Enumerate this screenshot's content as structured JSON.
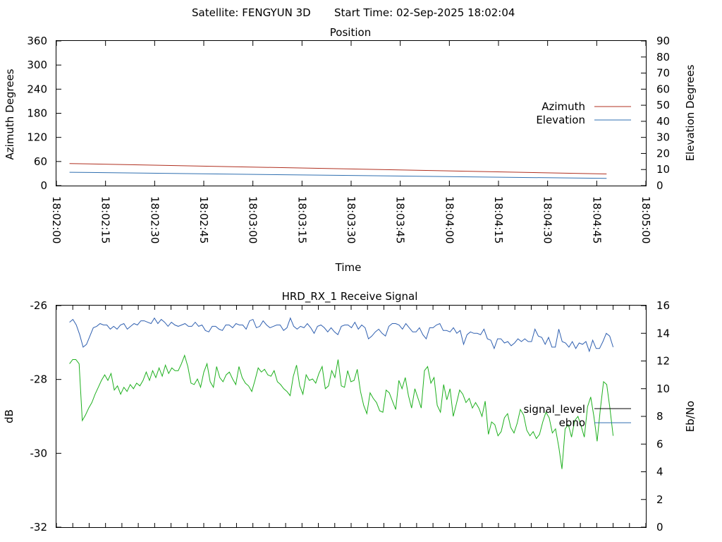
{
  "header": {
    "satellite_text": "Satellite: FENGYUN 3D",
    "start_time_text": "Start Time: 02-Sep-2025 18:02:04"
  },
  "colors": {
    "azimuth": "#b03020",
    "elevation": "#2f6fb0",
    "signal_level": "#000000",
    "ebno_legend": "#2f6fb0",
    "signal_trace": "#1fb01f",
    "ebno_trace": "#3060b0"
  },
  "chart_data": [
    {
      "type": "line",
      "title": "Position",
      "xlabel": "Time",
      "ylabel_left": "Azimuth Degrees",
      "ylabel_right": "Elevation Degrees",
      "xlim_seconds_from": "18:02:00",
      "x_tick_labels": [
        "18:02:00",
        "18:02:15",
        "18:02:30",
        "18:02:45",
        "18:03:00",
        "18:03:15",
        "18:03:30",
        "18:03:45",
        "18:04:00",
        "18:04:15",
        "18:04:30",
        "18:04:45",
        "18:05:00"
      ],
      "ylim_left": [
        0,
        360
      ],
      "ylim_right": [
        0,
        90
      ],
      "left_tick_labels": [
        "0",
        "60",
        "120",
        "180",
        "240",
        "300",
        "360"
      ],
      "right_tick_labels": [
        "0",
        "10",
        "20",
        "30",
        "40",
        "50",
        "60",
        "70",
        "80",
        "90"
      ],
      "legend_position": "right",
      "series": [
        {
          "name": "Azimuth",
          "axis": "left",
          "x": [
            "18:02:04",
            "18:04:48"
          ],
          "values": [
            55,
            29
          ]
        },
        {
          "name": "Elevation",
          "axis": "right",
          "x": [
            "18:02:04",
            "18:04:48"
          ],
          "values": [
            8.3,
            4.5
          ]
        }
      ]
    },
    {
      "type": "line",
      "title": "HRD_RX_1 Receive Signal",
      "ylabel_left": "dB",
      "ylabel_right": "Eb/No",
      "ylim_left": [
        -32,
        -26
      ],
      "ylim_right": [
        0,
        16
      ],
      "left_tick_labels": [
        "-32",
        "-30",
        "-28",
        "-26"
      ],
      "right_tick_labels": [
        "0",
        "2",
        "4",
        "6",
        "8",
        "10",
        "12",
        "14",
        "16"
      ],
      "legend_position": "right",
      "legend": [
        {
          "name": "signal_level"
        },
        {
          "name": "ebno"
        }
      ],
      "series": [
        {
          "axis": "right",
          "values": [
            14.8,
            15.0,
            14.6,
            13.9,
            13.0,
            13.2,
            13.8,
            14.4,
            14.5,
            14.7,
            14.6,
            14.6,
            14.3,
            14.5,
            14.3,
            14.6,
            14.7,
            14.3,
            14.5,
            14.7,
            14.6,
            14.9,
            14.9,
            14.8,
            14.7,
            15.1,
            14.7,
            15.0,
            14.8,
            14.5,
            14.8,
            14.6,
            14.5,
            14.6,
            14.7,
            14.5,
            14.5,
            14.8,
            14.5,
            14.6,
            14.2,
            14.1,
            14.5,
            14.5,
            14.3,
            14.2,
            14.6,
            14.6,
            14.4,
            14.7,
            14.6,
            14.6,
            14.3,
            14.9,
            15.0,
            14.4,
            14.5,
            14.9,
            14.6,
            14.4,
            14.5,
            14.6,
            14.6,
            14.2,
            14.4,
            15.1,
            14.5,
            14.3,
            14.5,
            14.4,
            14.7,
            14.4,
            14.0,
            14.5,
            14.6,
            14.4,
            14.1,
            14.4,
            14.1,
            13.9,
            14.5,
            14.6,
            14.6,
            14.4,
            14.8,
            14.3,
            14.6,
            14.4,
            13.6,
            13.8,
            14.1,
            14.3,
            14.0,
            13.8,
            14.5,
            14.7,
            14.7,
            14.6,
            14.3,
            14.7,
            14.4,
            14.1,
            14.1,
            14.4,
            13.9,
            13.6,
            14.4,
            14.4,
            14.6,
            14.7,
            14.2,
            14.2,
            14.1,
            14.4,
            14.0,
            14.2,
            13.2,
            13.9,
            14.1,
            14.0,
            14.0,
            13.9,
            14.3,
            13.6,
            13.5,
            12.9,
            13.6,
            13.6,
            13.3,
            13.4,
            13.1,
            13.3,
            13.6,
            13.4,
            13.6,
            13.4,
            13.4,
            14.3,
            13.8,
            13.7,
            13.2,
            13.7,
            13.0,
            13.0,
            14.3,
            13.4,
            13.3,
            13.0,
            13.4,
            12.9,
            13.3,
            13.2,
            13.4,
            12.7,
            13.5,
            12.9,
            12.9,
            13.4,
            14.0,
            13.8,
            13.0
          ],
          "values_count_note": ""
        },
        {
          "axis": "right",
          "values": [
            11.8,
            12.1,
            12.1,
            11.8,
            7.7,
            8.1,
            8.6,
            9.0,
            9.6,
            10.1,
            10.6,
            11.0,
            10.6,
            11.1,
            9.9,
            10.2,
            9.6,
            10.1,
            9.8,
            10.3,
            10.0,
            10.4,
            10.2,
            10.6,
            11.2,
            10.6,
            11.3,
            10.8,
            11.5,
            10.9,
            11.7,
            11.1,
            11.5,
            11.3,
            11.3,
            11.8,
            12.4,
            11.6,
            10.4,
            10.3,
            10.7,
            10.1,
            11.2,
            11.8,
            10.5,
            10.1,
            11.6,
            10.8,
            10.5,
            11.0,
            11.2,
            10.7,
            10.3,
            11.6,
            10.8,
            10.4,
            10.2,
            9.8,
            10.6,
            11.5,
            11.2,
            11.4,
            11.0,
            10.9,
            11.3,
            10.5,
            10.3,
            10.0,
            9.8,
            9.5,
            10.9,
            11.7,
            10.2,
            9.6,
            11.0,
            10.6,
            10.7,
            10.4,
            11.1,
            11.6,
            10.0,
            10.2,
            11.3,
            10.8,
            12.1,
            10.2,
            10.1,
            11.3,
            10.5,
            10.6,
            11.4,
            9.8,
            8.8,
            8.2,
            9.7,
            9.3,
            9.0,
            8.4,
            8.3,
            9.9,
            9.7,
            9.1,
            8.5,
            10.6,
            10.0,
            10.8,
            9.5,
            8.6,
            10.0,
            9.3,
            8.6,
            11.3,
            11.6,
            10.4,
            10.8,
            8.8,
            8.3,
            10.3,
            9.2,
            10.0,
            8.0,
            8.9,
            9.9,
            9.6,
            9.0,
            9.3,
            8.6,
            9.0,
            8.6,
            8.0,
            9.1,
            6.7,
            7.6,
            7.4,
            6.6,
            6.9,
            7.9,
            8.2,
            7.2,
            6.8,
            7.5,
            8.5,
            8.1,
            7.0,
            6.6,
            6.9,
            6.4,
            6.7,
            7.6,
            8.3,
            7.9,
            6.8,
            7.1,
            5.8,
            4.2,
            7.1,
            7.4,
            6.5,
            7.7,
            8.0,
            7.3,
            6.5,
            8.7,
            9.4,
            8.0,
            6.2,
            8.5,
            10.5,
            10.3,
            8.6,
            6.6
          ]
        }
      ]
    }
  ]
}
